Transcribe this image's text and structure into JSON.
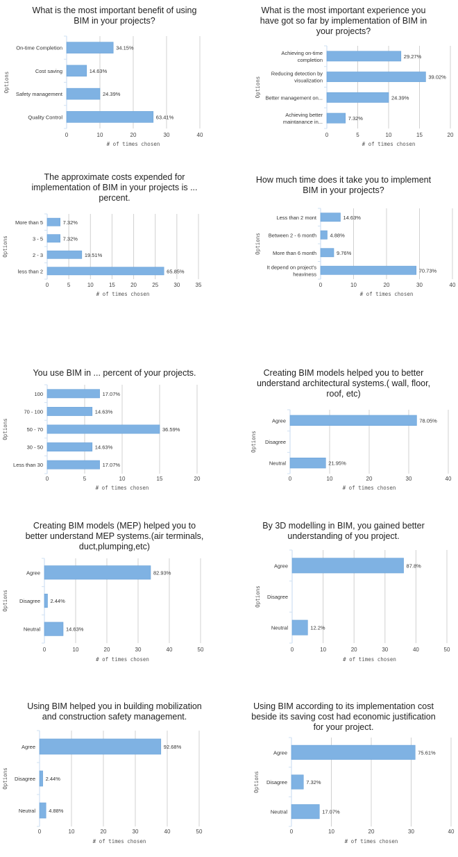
{
  "colors": {
    "bar": "#7fb2e3",
    "bar_edge": "#6aa2d8",
    "grid": "#d0d0d0",
    "axis": "#cfe0f2"
  },
  "chart_data": [
    {
      "type": "bar",
      "orientation": "horizontal",
      "title": "What is the most important benefit of using BIM in your projects?",
      "categories": [
        "On-time Completion",
        "Cost saving",
        "Safety management",
        "Quality Control"
      ],
      "values": [
        14,
        6,
        10,
        26
      ],
      "data_labels": [
        "34.15%",
        "14.63%",
        "24.39%",
        "63.41%"
      ],
      "xlabel": "# of times chosen",
      "ylabel": "Options",
      "xlim": [
        0,
        40
      ],
      "xticks": [
        0,
        10,
        20,
        30,
        40
      ],
      "grid": true
    },
    {
      "type": "bar",
      "orientation": "horizontal",
      "title": "What is the most important experience you have got so far by implementation of BIM in your projects?",
      "categories": [
        "Achieving on-time completion",
        "Reducing detection by visualization",
        "Better management on...",
        "Achieving better maintanance in..."
      ],
      "values": [
        12,
        16,
        10,
        3
      ],
      "data_labels": [
        "29.27%",
        "39.02%",
        "24.39%",
        "7.32%"
      ],
      "xlabel": "# of times chosen",
      "ylabel": "Options",
      "xlim": [
        0,
        20
      ],
      "xticks": [
        0,
        5,
        10,
        15,
        20
      ],
      "grid": true
    },
    {
      "type": "bar",
      "orientation": "horizontal",
      "title": "The approximate costs expended for implementation of BIM in your projects is ... percent.",
      "categories": [
        "More than 5",
        "3 - 5",
        "2 - 3",
        "less than 2"
      ],
      "values": [
        3,
        3,
        8,
        27
      ],
      "data_labels": [
        "7.32%",
        "7.32%",
        "19.51%",
        "65.85%"
      ],
      "xlabel": "# of times chosen",
      "ylabel": "Options",
      "xlim": [
        0,
        35
      ],
      "xticks": [
        0,
        5,
        10,
        15,
        20,
        25,
        30,
        35
      ],
      "grid": true
    },
    {
      "type": "bar",
      "orientation": "horizontal",
      "title": "How much time does it take you to implement BIM in your projects?",
      "categories": [
        "Less than 2 mont",
        "Between 2 - 6 month",
        "More than 6 month",
        "It depend on project's heaviness"
      ],
      "values": [
        6,
        2,
        4,
        29
      ],
      "data_labels": [
        "14.63%",
        "4.88%",
        "9.76%",
        "70.73%"
      ],
      "xlabel": "# of times chosen",
      "ylabel": "Options",
      "xlim": [
        0,
        40
      ],
      "xticks": [
        0,
        10,
        20,
        30,
        40
      ],
      "grid": true
    },
    {
      "type": "bar",
      "orientation": "horizontal",
      "title": "You use BIM in ... percent of your projects.",
      "categories": [
        "100",
        "70 - 100",
        "50 - 70",
        "30 - 50",
        "Less than 30"
      ],
      "values": [
        7,
        6,
        15,
        6,
        7
      ],
      "data_labels": [
        "17.07%",
        "14.63%",
        "36.59%",
        "14.63%",
        "17.07%"
      ],
      "xlabel": "# of times chosen",
      "ylabel": "Options",
      "xlim": [
        0,
        20
      ],
      "xticks": [
        0,
        5,
        10,
        15,
        20
      ],
      "grid": true
    },
    {
      "type": "bar",
      "orientation": "horizontal",
      "title": "Creating BIM models helped you to better understand architectural systems.( wall, floor, roof, etc)",
      "categories": [
        "Agree",
        "Disagree",
        "Neutral"
      ],
      "values": [
        32,
        0,
        9
      ],
      "data_labels": [
        "78.05%",
        "",
        "21.95%"
      ],
      "xlabel": "# of times chosen",
      "ylabel": "Options",
      "xlim": [
        0,
        40
      ],
      "xticks": [
        0,
        10,
        20,
        30,
        40
      ],
      "grid": true
    },
    {
      "type": "bar",
      "orientation": "horizontal",
      "title": "Creating BIM models (MEP) helped you to better understand MEP systems.(air terminals, duct,plumping,etc)",
      "categories": [
        "Agree",
        "Disagree",
        "Neutral"
      ],
      "values": [
        34,
        1,
        6
      ],
      "data_labels": [
        "82.93%",
        "2.44%",
        "14.63%"
      ],
      "xlabel": "# of times chosen",
      "ylabel": "Options",
      "xlim": [
        0,
        50
      ],
      "xticks": [
        0,
        10,
        20,
        30,
        40,
        50
      ],
      "grid": true
    },
    {
      "type": "bar",
      "orientation": "horizontal",
      "title": "By 3D modelling in BIM, you gained better understanding of you project.",
      "categories": [
        "Agree",
        "Disagree",
        "Neutral"
      ],
      "values": [
        36,
        0,
        5
      ],
      "data_labels": [
        "87.8%",
        "",
        "12.2%"
      ],
      "xlabel": "# of times chosen",
      "ylabel": "Options",
      "xlim": [
        0,
        50
      ],
      "xticks": [
        0,
        10,
        20,
        30,
        40,
        50
      ],
      "grid": true
    },
    {
      "type": "bar",
      "orientation": "horizontal",
      "title": "Using BIM helped you in building mobilization and construction safety management.",
      "categories": [
        "Agree",
        "Disagree",
        "Neutral"
      ],
      "values": [
        38,
        1,
        2
      ],
      "data_labels": [
        "92.68%",
        "2.44%",
        "4.88%"
      ],
      "xlabel": "# of times chosen",
      "ylabel": "Options",
      "xlim": [
        0,
        50
      ],
      "xticks": [
        0,
        10,
        20,
        30,
        40,
        50
      ],
      "grid": true
    },
    {
      "type": "bar",
      "orientation": "horizontal",
      "title": "Using BIM according to its implementation cost beside its saving cost had economic justification for your project.",
      "categories": [
        "Agree",
        "Disagree",
        "Neutral"
      ],
      "values": [
        31,
        3,
        7
      ],
      "data_labels": [
        "75.61%",
        "7.32%",
        "17.07%"
      ],
      "xlabel": "# of times chosen",
      "ylabel": "Options",
      "xlim": [
        0,
        40
      ],
      "xticks": [
        0,
        10,
        20,
        30,
        40
      ],
      "grid": true
    }
  ]
}
